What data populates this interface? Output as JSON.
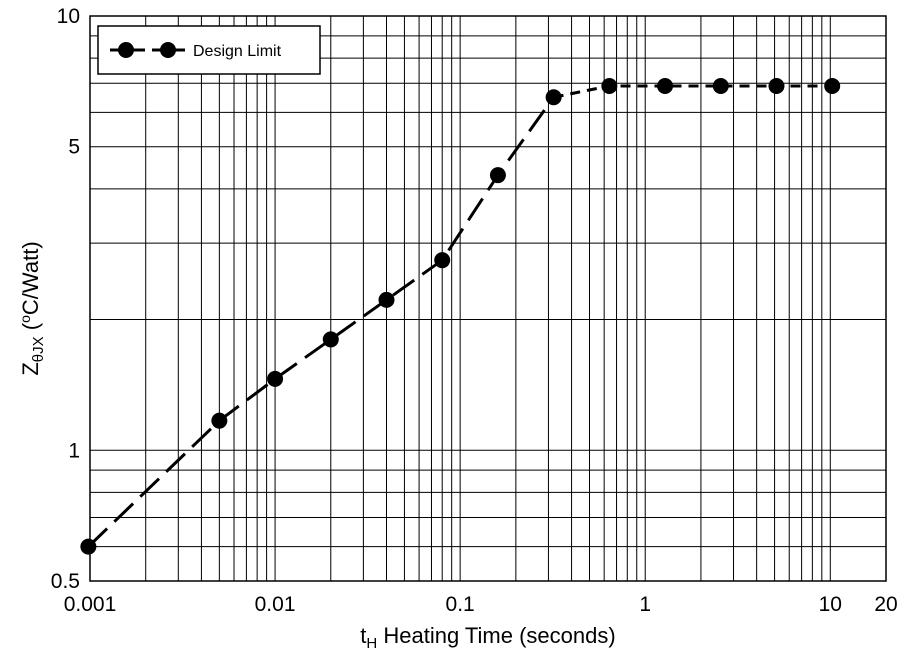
{
  "chart_data": {
    "type": "line",
    "x_scale": "log",
    "y_scale": "log",
    "xlim": [
      0.001,
      20
    ],
    "ylim": [
      0.5,
      10
    ],
    "grid": true,
    "legend_position": "top-left",
    "x_ticks": [
      {
        "value": 0.001,
        "label": "0.001"
      },
      {
        "value": 0.01,
        "label": "0.01"
      },
      {
        "value": 0.1,
        "label": "0.1"
      },
      {
        "value": 1,
        "label": "1"
      },
      {
        "value": 10,
        "label": "10"
      },
      {
        "value": 20,
        "label": "20"
      }
    ],
    "y_ticks": [
      {
        "value": 0.5,
        "label": "0.5"
      },
      {
        "value": 1,
        "label": "1"
      },
      {
        "value": 5,
        "label": "5"
      },
      {
        "value": 10,
        "label": "10"
      }
    ],
    "xlabel": {
      "sym": "t",
      "sub": "H",
      "rest": " Heating Time (seconds)"
    },
    "ylabel": {
      "sym": "Z",
      "sub": "θJX",
      "rest": "  (",
      "sup": "o",
      "unit": "C/Watt)"
    },
    "series": [
      {
        "name": "Design Limit",
        "color": "#000000",
        "x": [
          0.00098,
          0.005,
          0.01,
          0.02,
          0.04,
          0.08,
          0.16,
          0.32,
          0.64,
          1.28,
          2.56,
          5.12,
          10.24
        ],
        "y": [
          0.6,
          1.17,
          1.46,
          1.8,
          2.22,
          2.74,
          4.3,
          6.5,
          6.9,
          6.9,
          6.9,
          6.9,
          6.9
        ]
      }
    ]
  }
}
